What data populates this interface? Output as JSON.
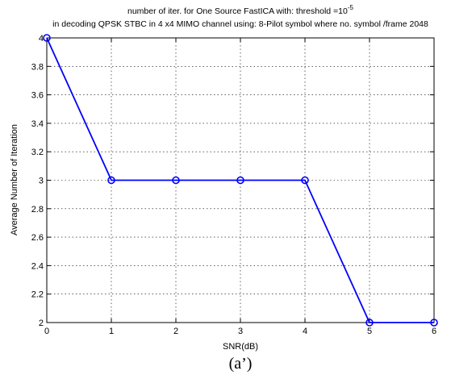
{
  "chart_data": {
    "type": "line",
    "title_line1": "number of iter. for One Source FastICA  with: threshold =10",
    "title_superscript": "-5",
    "title_line2": "in decoding QPSK STBC in 4 x4 MIMO channel using: 8-Pilot symbol where no. symbol /frame 2048",
    "xlabel": "SNR(dB)",
    "ylabel": "Average Number of Iteration",
    "caption": "(a’)",
    "x": [
      0,
      1,
      2,
      3,
      4,
      5,
      6
    ],
    "series": [
      {
        "values": [
          4,
          3,
          3,
          3,
          3,
          2,
          2
        ],
        "color": "#0000ff",
        "marker": "circle"
      }
    ],
    "xlim": [
      0,
      6
    ],
    "ylim": [
      2,
      4
    ],
    "xticks": [
      "0",
      "1",
      "2",
      "3",
      "4",
      "5",
      "6"
    ],
    "yticks": [
      "2",
      "2.2",
      "2.4",
      "2.6",
      "2.8",
      "3",
      "3.2",
      "3.4",
      "3.6",
      "3.8",
      "4"
    ],
    "grid": true,
    "line_color": "#0000ff"
  }
}
